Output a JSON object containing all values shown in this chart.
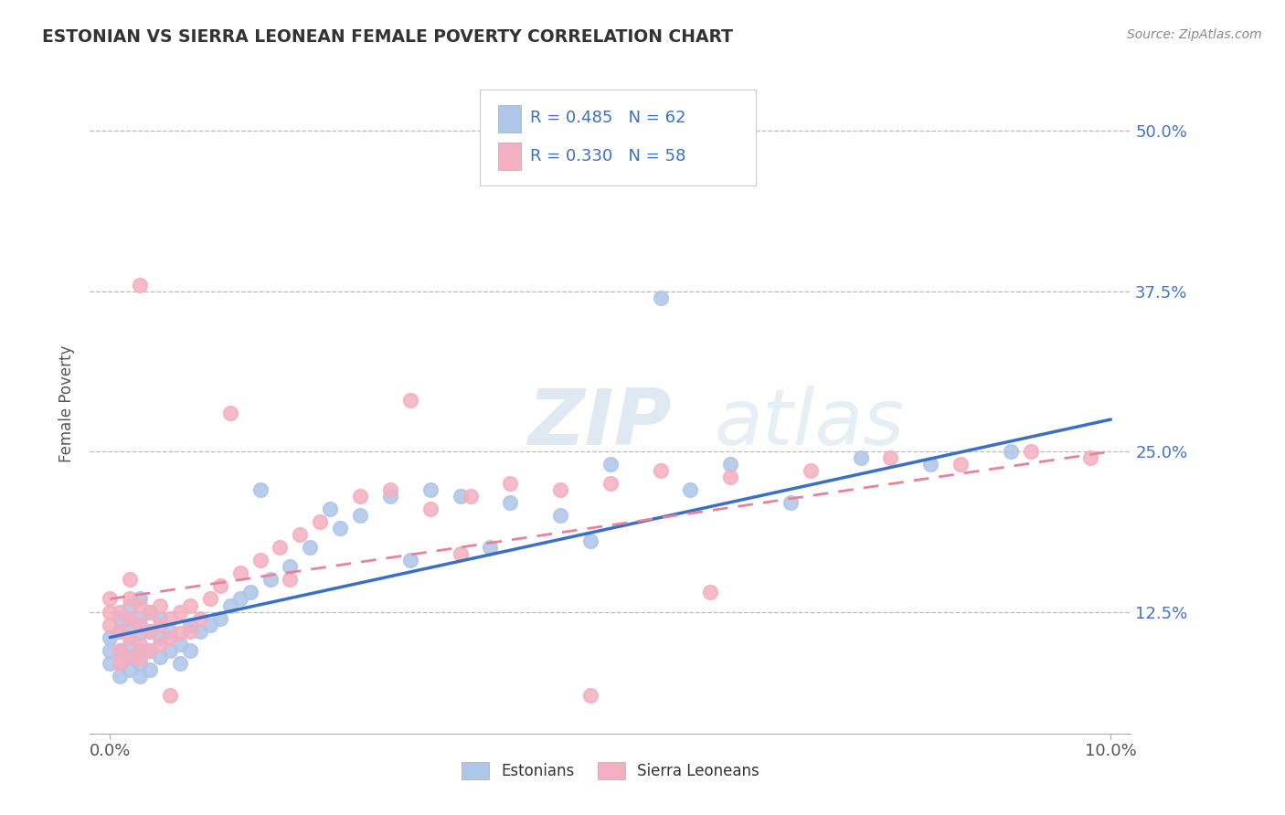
{
  "title": "ESTONIAN VS SIERRA LEONEAN FEMALE POVERTY CORRELATION CHART",
  "source_text": "Source: ZipAtlas.com",
  "ylabel": "Female Poverty",
  "xlim": [
    -0.002,
    0.102
  ],
  "ylim": [
    0.03,
    0.545
  ],
  "xticks": [
    0.0,
    0.1
  ],
  "xticklabels": [
    "0.0%",
    "10.0%"
  ],
  "ytick_positions": [
    0.125,
    0.25,
    0.375,
    0.5
  ],
  "ytick_labels": [
    "12.5%",
    "25.0%",
    "37.5%",
    "50.0%"
  ],
  "legend_r1": "R = 0.485",
  "legend_n1": "N = 62",
  "legend_r2": "R = 0.330",
  "legend_n2": "N = 58",
  "color_estonian": "#aec6e8",
  "color_sierraleone": "#f4afc0",
  "line_color_estonian": "#3a6fc4",
  "line_color_sierraleone": "#e8829a",
  "watermark_zip": "ZIP",
  "watermark_atlas": "atlas",
  "legend_label1": "Estonians",
  "legend_label2": "Sierra Leoneans",
  "est_line_x0": 0.0,
  "est_line_y0": 0.105,
  "est_line_x1": 0.1,
  "est_line_y1": 0.275,
  "sl_line_x0": 0.0,
  "sl_line_y0": 0.135,
  "sl_line_x1": 0.1,
  "sl_line_y1": 0.25,
  "estonian_x": [
    0.0,
    0.0,
    0.0,
    0.001,
    0.001,
    0.001,
    0.001,
    0.001,
    0.002,
    0.002,
    0.002,
    0.002,
    0.002,
    0.002,
    0.003,
    0.003,
    0.003,
    0.003,
    0.003,
    0.003,
    0.004,
    0.004,
    0.004,
    0.004,
    0.005,
    0.005,
    0.005,
    0.006,
    0.006,
    0.007,
    0.007,
    0.008,
    0.008,
    0.009,
    0.01,
    0.011,
    0.012,
    0.013,
    0.014,
    0.016,
    0.018,
    0.02,
    0.023,
    0.025,
    0.028,
    0.032,
    0.035,
    0.04,
    0.045,
    0.05,
    0.058,
    0.062,
    0.068,
    0.075,
    0.082,
    0.09,
    0.055,
    0.03,
    0.048,
    0.022,
    0.015,
    0.038
  ],
  "estonian_y": [
    0.085,
    0.095,
    0.105,
    0.075,
    0.085,
    0.095,
    0.11,
    0.12,
    0.08,
    0.09,
    0.1,
    0.11,
    0.12,
    0.13,
    0.075,
    0.085,
    0.095,
    0.108,
    0.12,
    0.135,
    0.08,
    0.095,
    0.11,
    0.125,
    0.09,
    0.105,
    0.12,
    0.095,
    0.11,
    0.085,
    0.1,
    0.095,
    0.115,
    0.11,
    0.115,
    0.12,
    0.13,
    0.135,
    0.14,
    0.15,
    0.16,
    0.175,
    0.19,
    0.2,
    0.215,
    0.22,
    0.215,
    0.21,
    0.2,
    0.24,
    0.22,
    0.24,
    0.21,
    0.245,
    0.24,
    0.25,
    0.37,
    0.165,
    0.18,
    0.205,
    0.22,
    0.175
  ],
  "sierraleone_x": [
    0.0,
    0.0,
    0.0,
    0.001,
    0.001,
    0.001,
    0.001,
    0.002,
    0.002,
    0.002,
    0.002,
    0.002,
    0.003,
    0.003,
    0.003,
    0.003,
    0.004,
    0.004,
    0.004,
    0.005,
    0.005,
    0.005,
    0.006,
    0.006,
    0.007,
    0.007,
    0.008,
    0.008,
    0.009,
    0.01,
    0.011,
    0.013,
    0.015,
    0.017,
    0.019,
    0.021,
    0.025,
    0.028,
    0.032,
    0.036,
    0.04,
    0.045,
    0.05,
    0.055,
    0.062,
    0.07,
    0.078,
    0.085,
    0.092,
    0.098,
    0.03,
    0.018,
    0.012,
    0.006,
    0.003,
    0.06,
    0.048,
    0.035
  ],
  "sierraleone_y": [
    0.115,
    0.125,
    0.135,
    0.085,
    0.095,
    0.11,
    0.125,
    0.09,
    0.105,
    0.12,
    0.135,
    0.15,
    0.088,
    0.1,
    0.115,
    0.13,
    0.095,
    0.11,
    0.125,
    0.1,
    0.115,
    0.13,
    0.105,
    0.12,
    0.108,
    0.125,
    0.11,
    0.13,
    0.12,
    0.135,
    0.145,
    0.155,
    0.165,
    0.175,
    0.185,
    0.195,
    0.215,
    0.22,
    0.205,
    0.215,
    0.225,
    0.22,
    0.225,
    0.235,
    0.23,
    0.235,
    0.245,
    0.24,
    0.25,
    0.245,
    0.29,
    0.15,
    0.28,
    0.06,
    0.38,
    0.14,
    0.06,
    0.17
  ]
}
